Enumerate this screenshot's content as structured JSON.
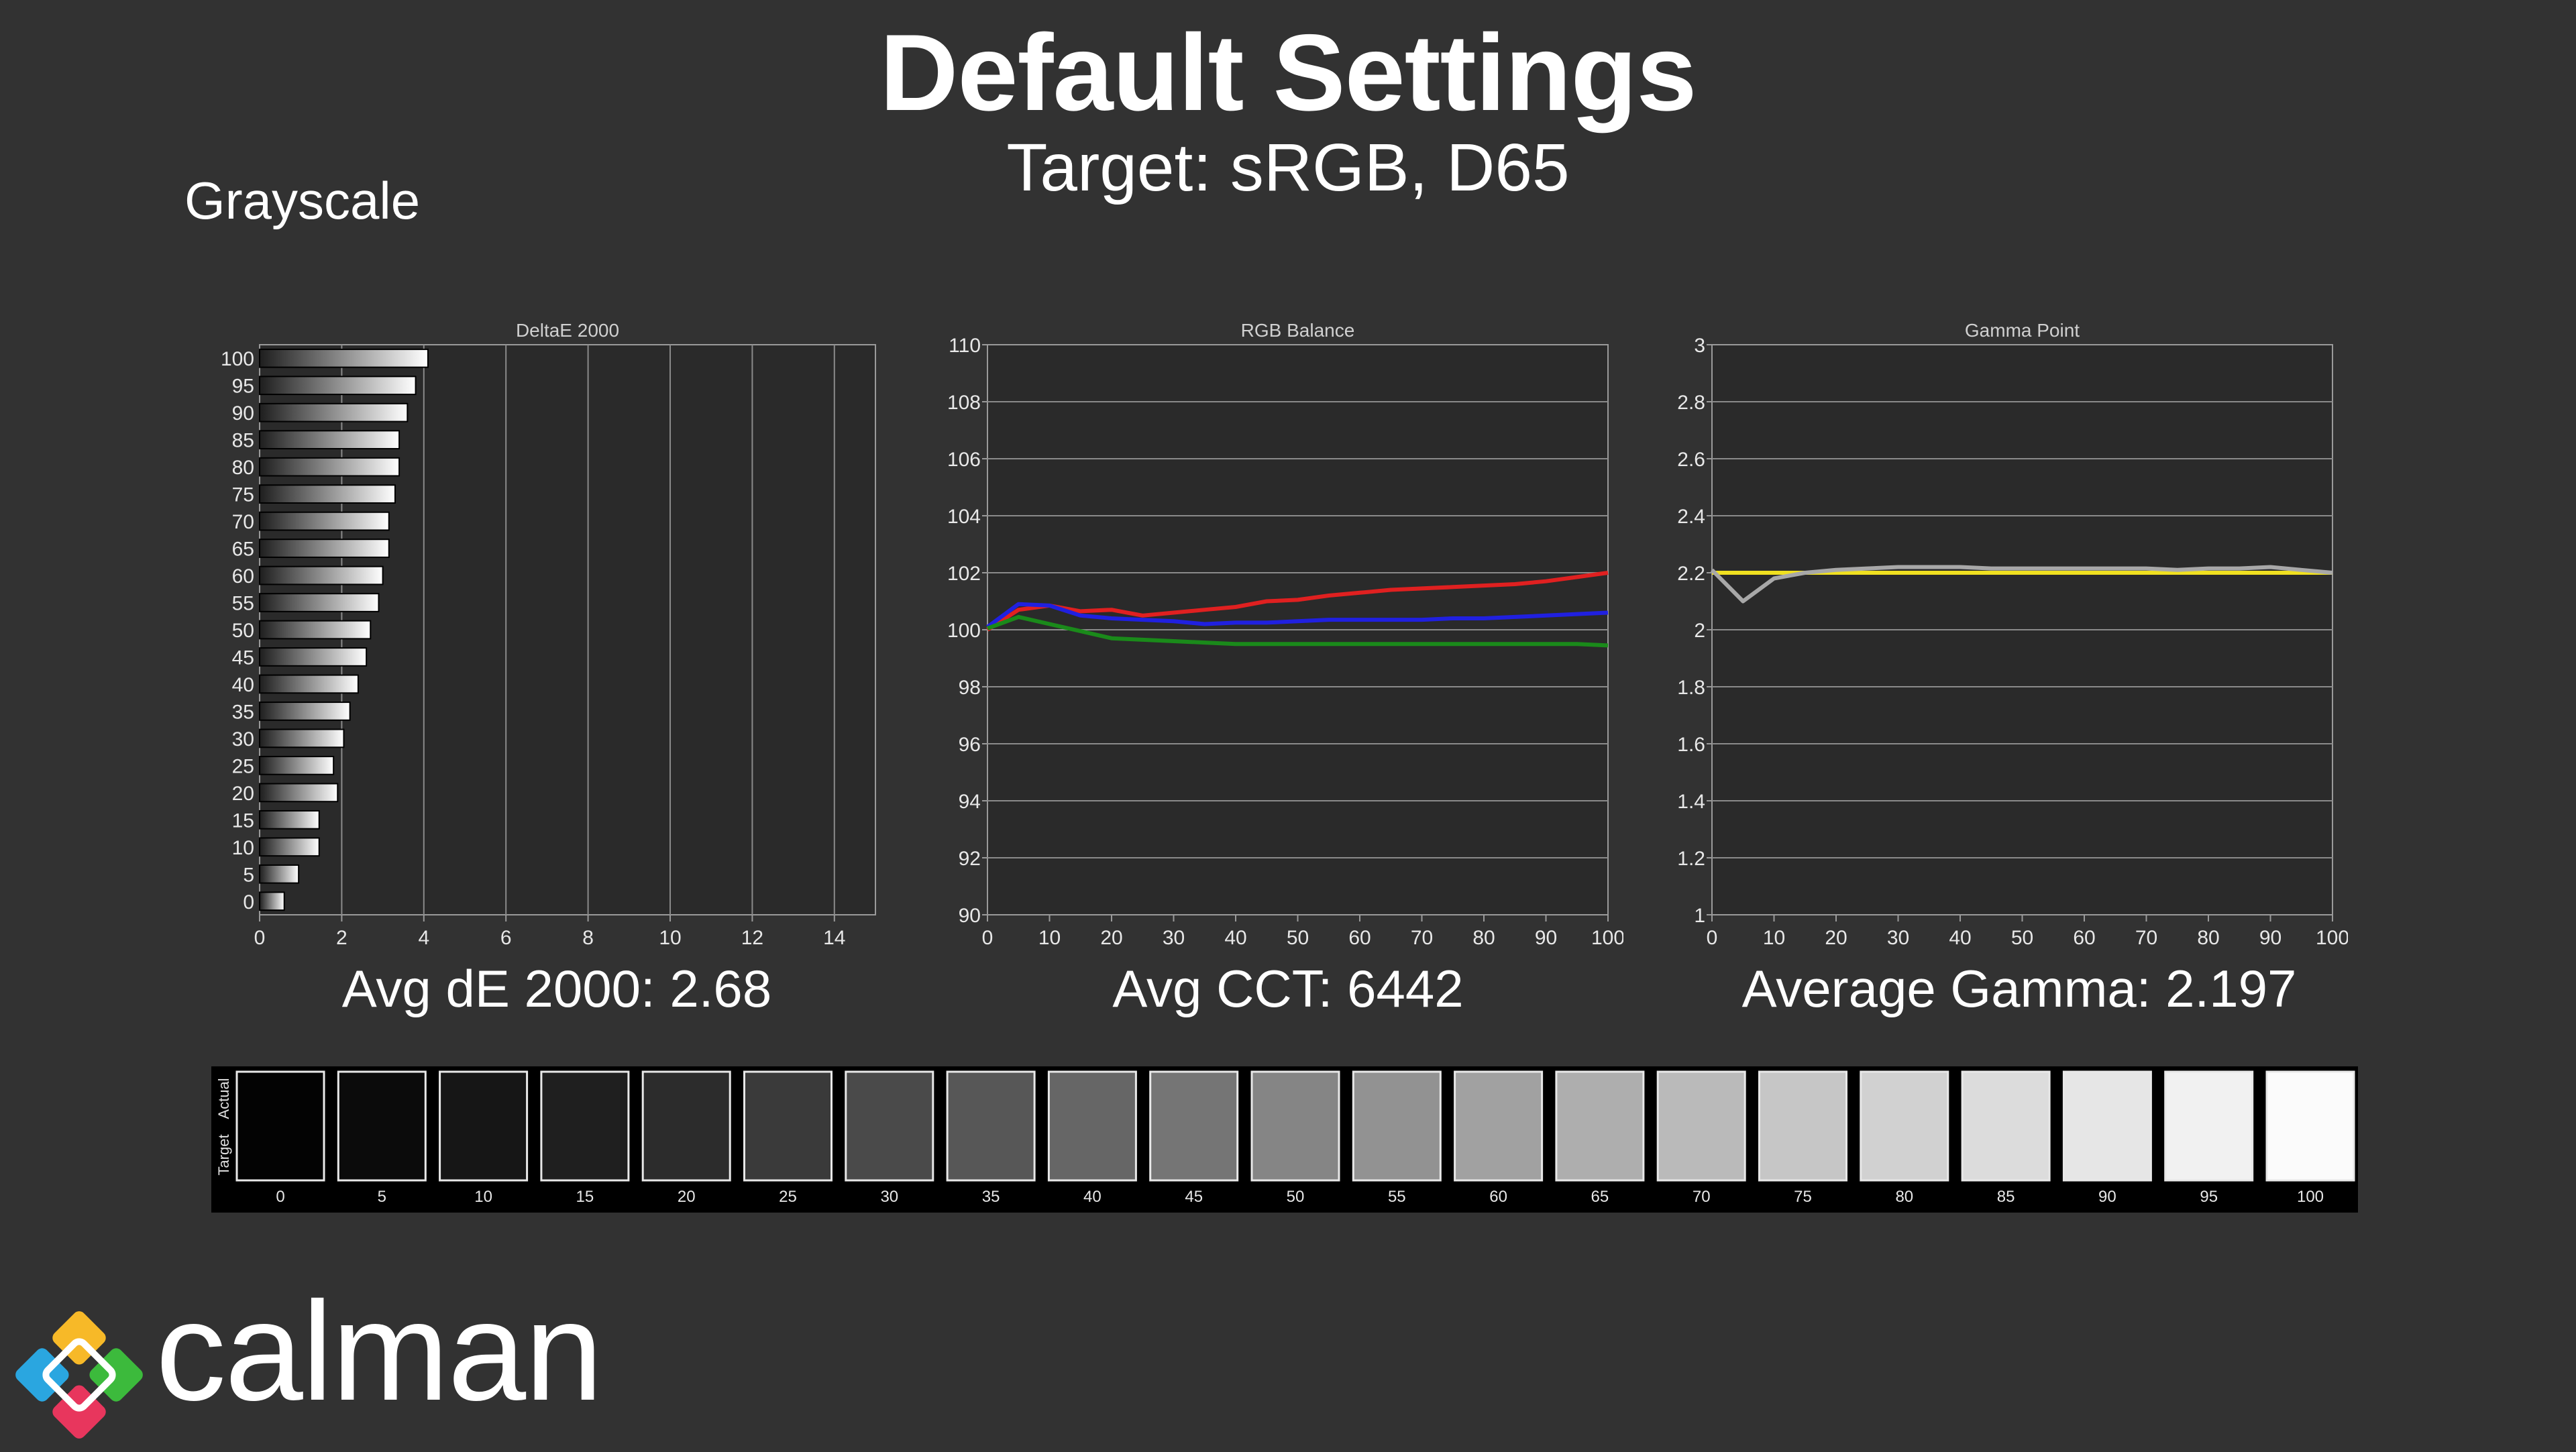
{
  "header": {
    "title": "Default Settings",
    "subtitle": "Target: sRGB, D65",
    "section_label": "Grayscale"
  },
  "summaries": {
    "delta_e": "Avg dE 2000: 2.68",
    "cct": "Avg CCT: 6442",
    "gamma": "Average Gamma: 2.197"
  },
  "logo": {
    "text": "calman",
    "icon": "calman-diamond-logo-icon"
  },
  "chart_data": [
    {
      "type": "bar",
      "orientation": "horizontal",
      "title": "DeltaE 2000",
      "categories": [
        "0",
        "5",
        "10",
        "15",
        "20",
        "25",
        "30",
        "35",
        "40",
        "45",
        "50",
        "55",
        "60",
        "65",
        "70",
        "75",
        "80",
        "85",
        "90",
        "95",
        "100"
      ],
      "values": [
        0.6,
        0.95,
        1.45,
        1.45,
        1.9,
        1.8,
        2.05,
        2.2,
        2.4,
        2.6,
        2.7,
        2.9,
        3.0,
        3.15,
        3.15,
        3.3,
        3.4,
        3.4,
        3.6,
        3.8,
        4.1
      ],
      "xlim": [
        0,
        15
      ],
      "xticks": [
        0,
        2,
        4,
        6,
        8,
        10,
        12,
        14
      ],
      "grid": true
    },
    {
      "type": "line",
      "title": "RGB Balance",
      "x": [
        0,
        5,
        10,
        15,
        20,
        25,
        30,
        35,
        40,
        45,
        50,
        55,
        60,
        65,
        70,
        75,
        80,
        85,
        90,
        95,
        100
      ],
      "series": [
        {
          "color": "#e02020",
          "values": [
            100.0,
            100.7,
            100.85,
            100.65,
            100.7,
            100.5,
            100.6,
            100.7,
            100.8,
            101.0,
            101.05,
            101.2,
            101.3,
            101.4,
            101.45,
            101.5,
            101.55,
            101.6,
            101.7,
            101.85,
            102.0
          ]
        },
        {
          "color": "#2020e0",
          "values": [
            100.1,
            100.9,
            100.85,
            100.5,
            100.4,
            100.35,
            100.3,
            100.2,
            100.25,
            100.25,
            100.3,
            100.35,
            100.35,
            100.35,
            100.35,
            100.4,
            100.4,
            100.45,
            100.5,
            100.55,
            100.6
          ]
        },
        {
          "color": "#1a8a1a",
          "values": [
            100.05,
            100.45,
            100.2,
            99.95,
            99.7,
            99.65,
            99.6,
            99.55,
            99.5,
            99.5,
            99.5,
            99.5,
            99.5,
            99.5,
            99.5,
            99.5,
            99.5,
            99.5,
            99.5,
            99.5,
            99.45
          ]
        }
      ],
      "xlim": [
        0,
        100
      ],
      "ylim": [
        90,
        110
      ],
      "xticks": [
        0,
        10,
        20,
        30,
        40,
        50,
        60,
        70,
        80,
        90,
        100
      ],
      "yticks": [
        90,
        92,
        94,
        96,
        98,
        100,
        102,
        104,
        106,
        108,
        110
      ],
      "grid": true
    },
    {
      "type": "line",
      "title": "Gamma Point",
      "x": [
        0,
        5,
        10,
        15,
        20,
        25,
        30,
        35,
        40,
        45,
        50,
        55,
        60,
        65,
        70,
        75,
        80,
        85,
        90,
        95,
        100
      ],
      "series": [
        {
          "color": "#f0e020",
          "values": [
            2.2,
            2.2,
            2.2,
            2.2,
            2.2,
            2.2,
            2.2,
            2.2,
            2.2,
            2.2,
            2.2,
            2.2,
            2.2,
            2.2,
            2.2,
            2.2,
            2.2,
            2.2,
            2.2,
            2.2,
            2.2
          ]
        },
        {
          "color": "#a8a8a8",
          "values": [
            2.21,
            2.1,
            2.18,
            2.2,
            2.21,
            2.215,
            2.22,
            2.22,
            2.22,
            2.215,
            2.215,
            2.215,
            2.215,
            2.215,
            2.215,
            2.21,
            2.215,
            2.215,
            2.22,
            2.21,
            2.2
          ]
        }
      ],
      "xlim": [
        0,
        100
      ],
      "ylim": [
        1,
        3
      ],
      "xticks": [
        0,
        10,
        20,
        30,
        40,
        50,
        60,
        70,
        80,
        90,
        100
      ],
      "yticks": [
        "1",
        "1.2",
        "1.4",
        "1.6",
        "1.8",
        "2",
        "2.2",
        "2.4",
        "2.6",
        "2.8",
        "3"
      ],
      "grid": true
    }
  ],
  "swatches": {
    "row_labels": [
      "Actual",
      "Target"
    ],
    "labels": [
      "0",
      "5",
      "10",
      "15",
      "20",
      "25",
      "30",
      "35",
      "40",
      "45",
      "50",
      "55",
      "60",
      "65",
      "70",
      "75",
      "80",
      "85",
      "90",
      "95",
      "100"
    ],
    "colors": [
      "#030303",
      "#0b0b0b",
      "#161616",
      "#1f1f1f",
      "#2c2c2c",
      "#3a3a3a",
      "#4a4a4a",
      "#575757",
      "#666666",
      "#757575",
      "#858585",
      "#929292",
      "#a1a1a1",
      "#aeaeae",
      "#bababa",
      "#c6c6c6",
      "#d1d1d1",
      "#dcdcdc",
      "#e6e6e6",
      "#f1f1f1",
      "#fbfbfb"
    ]
  }
}
